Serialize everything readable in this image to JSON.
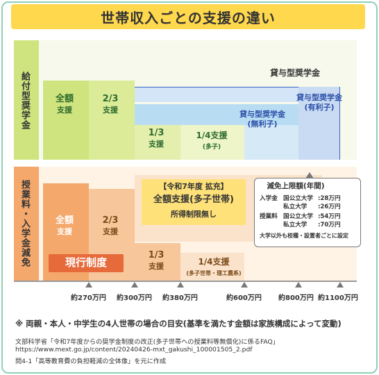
{
  "title": "世帯収入ごとの支援の違い",
  "sections": {
    "top_label": "給付型奨学金",
    "bottom_label": "授業料・入学金減免"
  },
  "grant": {
    "full": [
      "全額",
      "支援"
    ],
    "two_thirds": [
      "2/3",
      "支援"
    ],
    "one_third": [
      "1/3",
      "支援"
    ],
    "one_quarter": [
      "1/4支援",
      "(多子)"
    ],
    "loan_header": "貸与型奨学金",
    "loan_interest": [
      "貸与型奨学金",
      "(有利子)"
    ],
    "loan_no_interest": [
      "貸与型奨学金",
      "(無利子)"
    ]
  },
  "reduction": {
    "full": [
      "全額",
      "支援"
    ],
    "two_thirds": [
      "2/3",
      "支援"
    ],
    "one_third": [
      "1/3",
      "支援"
    ],
    "one_quarter": [
      "1/4支援",
      "(多子世帯・理工農系)"
    ],
    "current_system": "現行制度",
    "expansion_tag": "【令和7年度 拡充】",
    "expansion_title": "全額支援(多子世帯)",
    "expansion_sub": "所得制限無し"
  },
  "limits": {
    "title": "減免上限額(年間)",
    "rows": [
      {
        "cat": "入学金",
        "type": "国公立大学",
        "amount": ":28万円"
      },
      {
        "cat": "",
        "type": "私立大学",
        "amount": ":26万円"
      },
      {
        "cat": "授業料",
        "type": "国公立大学",
        "amount": ":54万円"
      },
      {
        "cat": "",
        "type": "私立大学",
        "amount": ":70万円"
      }
    ],
    "note": "大学以外も校種・設置者ごとに設定"
  },
  "income_ticks": [
    "約270万円",
    "約300万円",
    "約380万円",
    "約600万円",
    "約800万円",
    "約1100万円"
  ],
  "footnote": "※ 両親・本人・中学生の4人世帯の場合の目安(基準を満たす金額は家族構成によって変動)",
  "source": [
    "文部科学省「令和7年度からの奨学金制度の改正(多子世帯への授業料等無償化)に係るFAQ」",
    "https://www.mext.go.jp/content/20240426-mxt_gakushi_100001505_2.pdf",
    "問4-1「高等教育費の負担軽減の全体像」を元に作成"
  ],
  "colors": {
    "green_dark": "#cfe47e",
    "green_light": "#eef5c9",
    "blue_mid": "#b8dcf2",
    "blue_header": "#d3e5f6",
    "blue_light": "#e4f1fa",
    "orange": "#f4a86c",
    "orange_mid": "#f7c79b",
    "peach": "#fbe3cb",
    "peach_light": "#fff3e6",
    "yellow": "#ffd84d",
    "expansion_bg": "#ffe17a",
    "current_red": "#e66a3a"
  }
}
